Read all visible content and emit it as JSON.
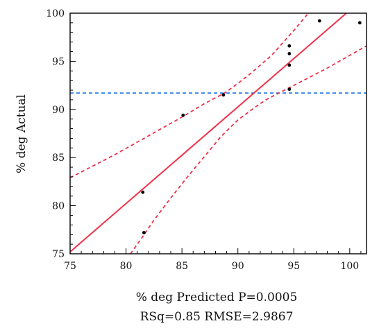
{
  "chart_data": {
    "type": "scatter",
    "title": "",
    "xlabel": "% deg Predicted P=0.0005",
    "xlabel2": "RSq=0.85 RMSE=2.9867",
    "ylabel": "% deg Actual",
    "xlim": [
      75,
      101.5
    ],
    "ylim": [
      75,
      100
    ],
    "xticks": [
      75,
      80,
      85,
      90,
      95,
      100
    ],
    "yticks": [
      75,
      80,
      85,
      90,
      95,
      100
    ],
    "grid": false,
    "points": [
      {
        "x": 81.5,
        "y": 81.4
      },
      {
        "x": 81.6,
        "y": 77.2
      },
      {
        "x": 85.1,
        "y": 89.4
      },
      {
        "x": 88.7,
        "y": 91.5
      },
      {
        "x": 94.6,
        "y": 92.1
      },
      {
        "x": 94.6,
        "y": 94.6
      },
      {
        "x": 94.6,
        "y": 95.8
      },
      {
        "x": 94.6,
        "y": 96.6
      },
      {
        "x": 97.3,
        "y": 99.2
      },
      {
        "x": 100.9,
        "y": 99.0
      }
    ],
    "fit_line": {
      "x": [
        75,
        99.7
      ],
      "y": [
        75.2,
        100
      ],
      "color": "#f0314a"
    },
    "confidence_upper": {
      "x": [
        75,
        77,
        79,
        81,
        83,
        85,
        87,
        88.8,
        90,
        91,
        92,
        93,
        94,
        95,
        96.3
      ],
      "y": [
        82.9,
        84.1,
        85.3,
        86.6,
        87.9,
        89.2,
        90.6,
        91.7,
        92.7,
        93.6,
        94.6,
        95.6,
        96.9,
        98.2,
        100
      ],
      "color": "#f0314a"
    },
    "confidence_lower": {
      "x": [
        80.4,
        81.5,
        82.5,
        84,
        85.5,
        87,
        88.5,
        90,
        91.5,
        92.5,
        94,
        96,
        98,
        101.5
      ],
      "y": [
        75,
        76.8,
        78.5,
        80.8,
        83.0,
        85.1,
        87.2,
        88.9,
        90.2,
        91.0,
        91.9,
        93.1,
        94.3,
        96.6
      ],
      "color": "#f0314a"
    },
    "mean_line": {
      "y": 91.7,
      "color": "#2b7de9"
    },
    "point_color": "#000000"
  }
}
